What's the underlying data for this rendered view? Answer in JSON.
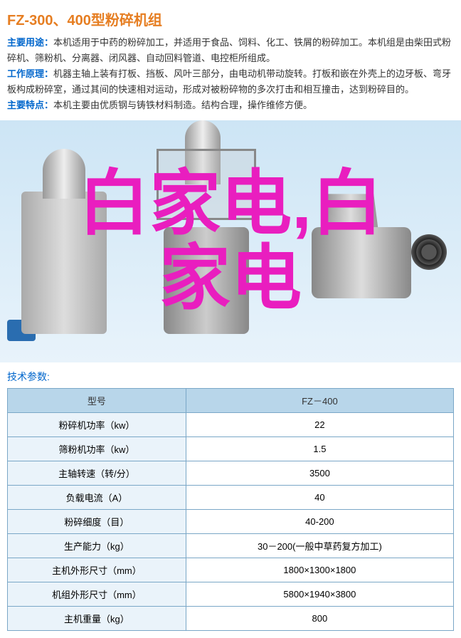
{
  "title": "FZ-300、400型粉碎机组",
  "desc": {
    "use_label": "主要用途：",
    "use_text": "本机适用于中药的粉碎加工，并适用于食品、饲料、化工、铁屑的粉碎加工。本机组是由柴田式粉碎机、筛粉机、分离器、闭风器、自动回料管道、电控柜所组成。",
    "principle_label": "工作原理：",
    "principle_text": "机器主轴上装有打板、挡板、风叶三部分，由电动机带动旋转。打板和嵌在外壳上的边牙板、弯牙板构成粉碎室，通过其间的快速相对运动，形成对被粉碎物的多次打击和相互撞击，达到粉碎目的。",
    "feature_label": "主要特点：",
    "feature_text": "本机主要由优质钢与铸铁材料制造。结构合理，操作维修方便。"
  },
  "watermark": {
    "line1": "白家电,白",
    "line2": "家电"
  },
  "params_label": "技术参数:",
  "table": {
    "headers": [
      "型号",
      "FZ－400"
    ],
    "rows": [
      [
        "粉碎机功率（kw）",
        "22"
      ],
      [
        "筛粉机功率（kw）",
        "1.5"
      ],
      [
        "主轴转速（转/分）",
        "3500"
      ],
      [
        "负载电流（A）",
        "40"
      ],
      [
        "粉碎细度（目）",
        "40-200"
      ],
      [
        "生产能力（kg）",
        "30－200(一般中草药复方加工)"
      ],
      [
        "主机外形尺寸（mm）",
        "1800×1300×1800"
      ],
      [
        "机组外形尺寸（mm）",
        "5800×1940×3800"
      ],
      [
        "主机重量（kg）",
        "800"
      ]
    ]
  },
  "colors": {
    "title": "#e67e22",
    "label": "#0066cc",
    "watermark": "#e91ebf",
    "table_header_bg": "#b8d6ea",
    "table_border": "#7aa7c7",
    "table_cell_bg": "#eaf3fa"
  }
}
